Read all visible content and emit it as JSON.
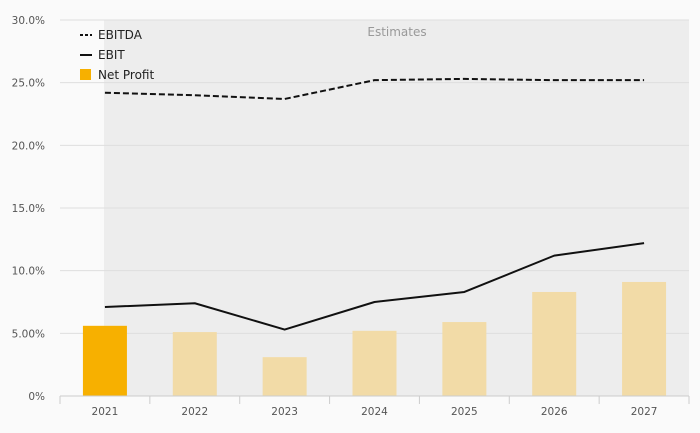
{
  "chart_data": {
    "type": "bar+line",
    "categories": [
      "2021",
      "2022",
      "2023",
      "2024",
      "2025",
      "2026",
      "2027"
    ],
    "ylim": [
      0,
      30
    ],
    "y_ticks": [
      0,
      5,
      10,
      15,
      20,
      25,
      30
    ],
    "y_tick_labels": [
      "0%",
      "5.00%",
      "10.0%",
      "15.0%",
      "20.0%",
      "25.0%",
      "30.0%"
    ],
    "grid": true,
    "estimates_label": "Estimates",
    "estimates_start_category": "2021",
    "legend_position": "top-left",
    "series": [
      {
        "name": "EBITDA",
        "type": "line",
        "style": "dashed",
        "color": "#111111",
        "values": [
          24.2,
          24.0,
          23.7,
          25.2,
          25.3,
          25.2,
          25.2
        ]
      },
      {
        "name": "EBIT",
        "type": "line",
        "style": "solid",
        "color": "#111111",
        "values": [
          7.1,
          7.4,
          5.3,
          7.5,
          8.3,
          11.2,
          12.2
        ]
      },
      {
        "name": "Net Profit",
        "type": "bar",
        "color": "#f7b000",
        "estimate_color": "#f2dba7",
        "values": [
          5.6,
          5.1,
          3.1,
          5.2,
          5.9,
          8.3,
          9.1
        ]
      }
    ]
  }
}
